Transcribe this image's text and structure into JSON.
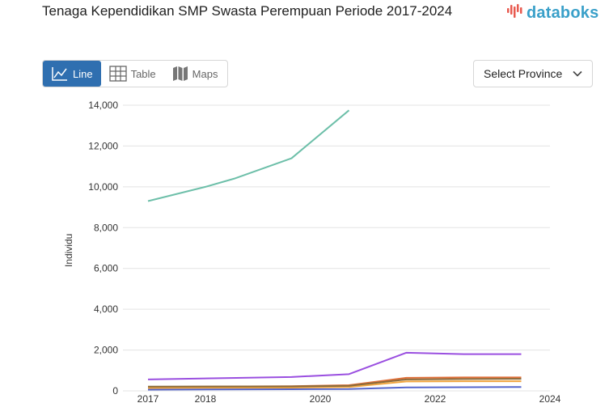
{
  "title": "Tenaga Kependidikan SMP Swasta Perempuan Periode 2017-2024",
  "logo": {
    "text": "databoks",
    "icon": "databoks-logo-icon"
  },
  "view_tabs": [
    {
      "label": "Line",
      "icon": "line-chart-icon",
      "active": true
    },
    {
      "label": "Table",
      "icon": "table-icon",
      "active": false
    },
    {
      "label": "Maps",
      "icon": "map-icon",
      "active": false
    }
  ],
  "province_select": {
    "value": "Select Province",
    "icon": "chevron-down-icon"
  },
  "colors": {
    "accent": "#2f6fb0",
    "logo": "#3aa0c9"
  },
  "chart_data": {
    "type": "line",
    "title": "",
    "ylabel": "Individu",
    "xlabel": "",
    "ylim": [
      0,
      14000
    ],
    "xlim": [
      2017,
      2024
    ],
    "y_ticks": [
      0,
      2000,
      4000,
      6000,
      8000,
      10000,
      12000,
      14000
    ],
    "y_tick_labels": [
      "0",
      "2,000",
      "4,000",
      "6,000",
      "8,000",
      "10,000",
      "12,000",
      "14,000"
    ],
    "x_ticks": [
      2017,
      2018,
      2020,
      2022,
      2024
    ],
    "x_tick_labels": [
      "2017",
      "2018",
      "2020",
      "2022",
      "2024"
    ],
    "grid": true,
    "series": [
      {
        "color": "#6dbfa9",
        "x": [
          2017,
          2018,
          2018.5,
          2019.5,
          2020.5
        ],
        "values": [
          9300,
          10000,
          10400,
          11400,
          13750
        ]
      },
      {
        "color": "#9a4fe0",
        "x": [
          2017,
          2019.5,
          2020.5,
          2021.5,
          2022.5,
          2023.5
        ],
        "values": [
          560,
          680,
          820,
          1870,
          1800,
          1800
        ]
      },
      {
        "color": "#e0703a",
        "x": [
          2017,
          2019.5,
          2020.5,
          2021.5,
          2022.5,
          2023.5
        ],
        "values": [
          190,
          230,
          280,
          640,
          660,
          660
        ]
      },
      {
        "color": "#f2a640",
        "x": [
          2017,
          2019.5,
          2020.5,
          2021.5,
          2022.5,
          2023.5
        ],
        "values": [
          140,
          160,
          190,
          460,
          470,
          470
        ]
      },
      {
        "color": "#8a6a3a",
        "x": [
          2017,
          2019.5,
          2020.5,
          2021.5,
          2022.5,
          2023.5
        ],
        "values": [
          210,
          220,
          250,
          560,
          580,
          590
        ]
      },
      {
        "color": "#5566cc",
        "x": [
          2017,
          2019.5,
          2020.5,
          2021.5,
          2022.5,
          2023.5
        ],
        "values": [
          60,
          80,
          90,
          170,
          180,
          190
        ]
      }
    ]
  }
}
